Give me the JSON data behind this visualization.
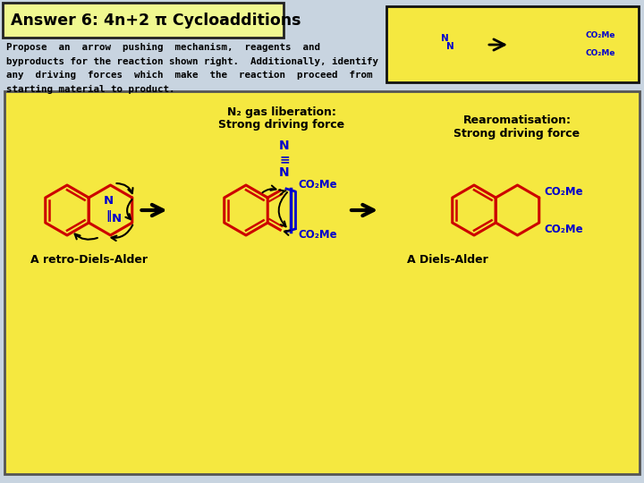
{
  "bg_color": "#c8d4e0",
  "yellow_bg": "#f5e840",
  "title_text": "Answer 6: 4n+2 π Cycloadditions",
  "title_box_color": "#f0f890",
  "title_border": "#222222",
  "body_text_lines": [
    "Propose  an  arrow  pushing  mechanism,  reagents  and",
    "byproducts for the reaction shown right.  Additionally, identify",
    "any  driving  forces  which  make  the  reaction  proceed  from",
    "starting material to product."
  ],
  "n2_line1": "N",
  "n2_line2": "≡",
  "n2_line3": "N",
  "n2_label_line1": "N₂ gas liberation:",
  "n2_label_line2": "Strong driving force",
  "rearom_line1": "Rearomatisation:",
  "rearom_line2": "Strong driving force",
  "retro_label": "A retro-Diels-Alder",
  "diels_label": "A Diels-Alder",
  "text_color": "#000000",
  "red_color": "#cc0000",
  "blue_color": "#0000cc",
  "co2me": "CO₂Me"
}
